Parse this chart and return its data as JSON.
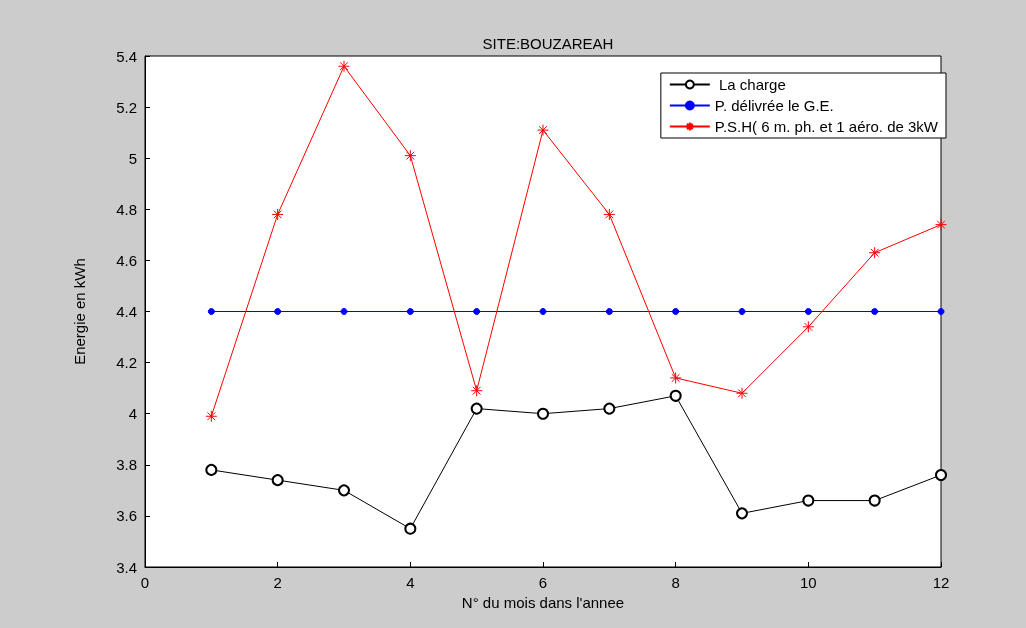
{
  "chart_data": {
    "type": "line",
    "title": "SITE:BOUZAREAH",
    "xlabel": "N° du mois dans l'annee",
    "ylabel": "Energie en kWh",
    "x": [
      1,
      2,
      3,
      4,
      5,
      6,
      7,
      8,
      9,
      10,
      11,
      12
    ],
    "series": [
      {
        "name": " La charge",
        "color": "#000000",
        "marker": "circle",
        "values": [
          3.78,
          3.74,
          3.7,
          3.55,
          4.02,
          4.0,
          4.02,
          4.07,
          3.61,
          3.66,
          3.66,
          3.76
        ]
      },
      {
        "name": "P. délivrée le G.E.",
        "color": "#0000ff",
        "marker": "circle",
        "values": [
          4.4,
          4.4,
          4.4,
          4.4,
          4.4,
          4.4,
          4.4,
          4.4,
          4.4,
          4.4,
          4.4,
          4.4
        ]
      },
      {
        "name": "P.S.H( 6 m. ph. et 1 aéro. de 3kW",
        "color": "#ff0000",
        "marker": "cross",
        "values": [
          3.99,
          4.78,
          5.36,
          5.01,
          4.09,
          5.11,
          4.78,
          4.14,
          4.08,
          4.34,
          4.63,
          4.74
        ]
      }
    ],
    "xlim": [
      0,
      12
    ],
    "xticks": [
      0,
      2,
      4,
      6,
      8,
      10,
      12
    ],
    "ylim": [
      3.4,
      5.4
    ],
    "yticks": [
      3.4,
      3.6,
      3.8,
      4,
      4.2,
      4.4,
      4.6,
      4.8,
      5,
      5.2,
      5.4
    ],
    "grid": false,
    "legend": "top right",
    "line_style": "solid"
  }
}
